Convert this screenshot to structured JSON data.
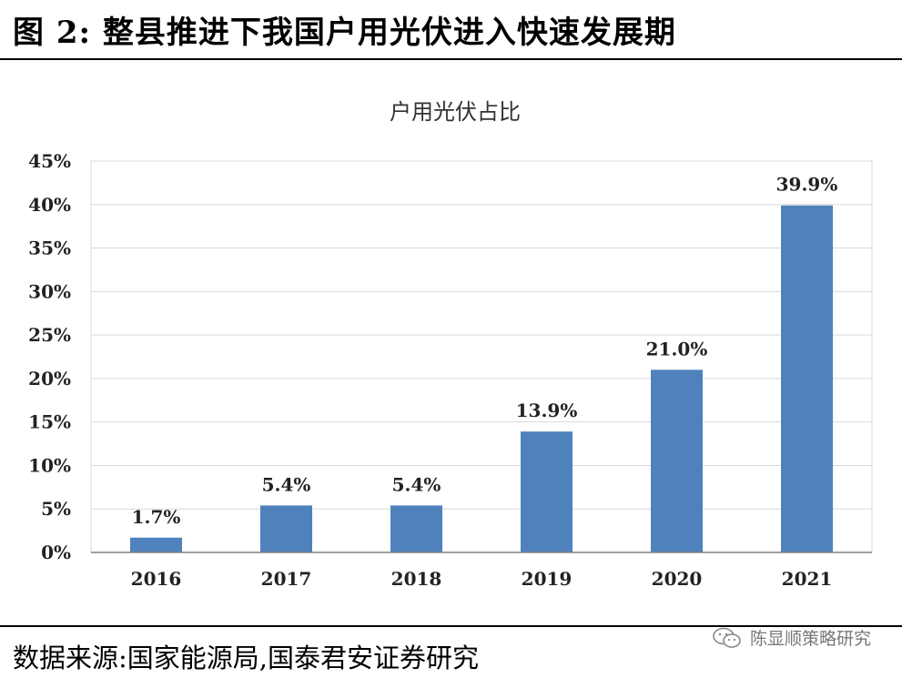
{
  "figure_title": "图 2:  整县推进下我国户用光伏进入快速发展期",
  "source": "数据来源:国家能源局,国泰君安证券研究",
  "watermark": {
    "icon": "wechat-icon",
    "text": "陈显顺策略研究"
  },
  "colors": {
    "bar": "#4f81bd",
    "grid": "#d9d9d9",
    "axis": "#808080"
  },
  "chart_data": {
    "type": "bar",
    "title": "户用光伏占比",
    "xlabel": "",
    "ylabel": "",
    "categories": [
      "2016",
      "2017",
      "2018",
      "2019",
      "2020",
      "2021"
    ],
    "values": [
      1.7,
      5.4,
      5.4,
      13.9,
      21.0,
      39.9
    ],
    "data_labels": [
      "1.7%",
      "5.4%",
      "5.4%",
      "13.9%",
      "21.0%",
      "39.9%"
    ],
    "ylim": [
      0,
      45
    ],
    "y_ticks": [
      0,
      5,
      10,
      15,
      20,
      25,
      30,
      35,
      40,
      45
    ],
    "y_tick_labels": [
      "0%",
      "5%",
      "10%",
      "15%",
      "20%",
      "25%",
      "30%",
      "35%",
      "40%",
      "45%"
    ],
    "grid": true,
    "legend": "none"
  }
}
